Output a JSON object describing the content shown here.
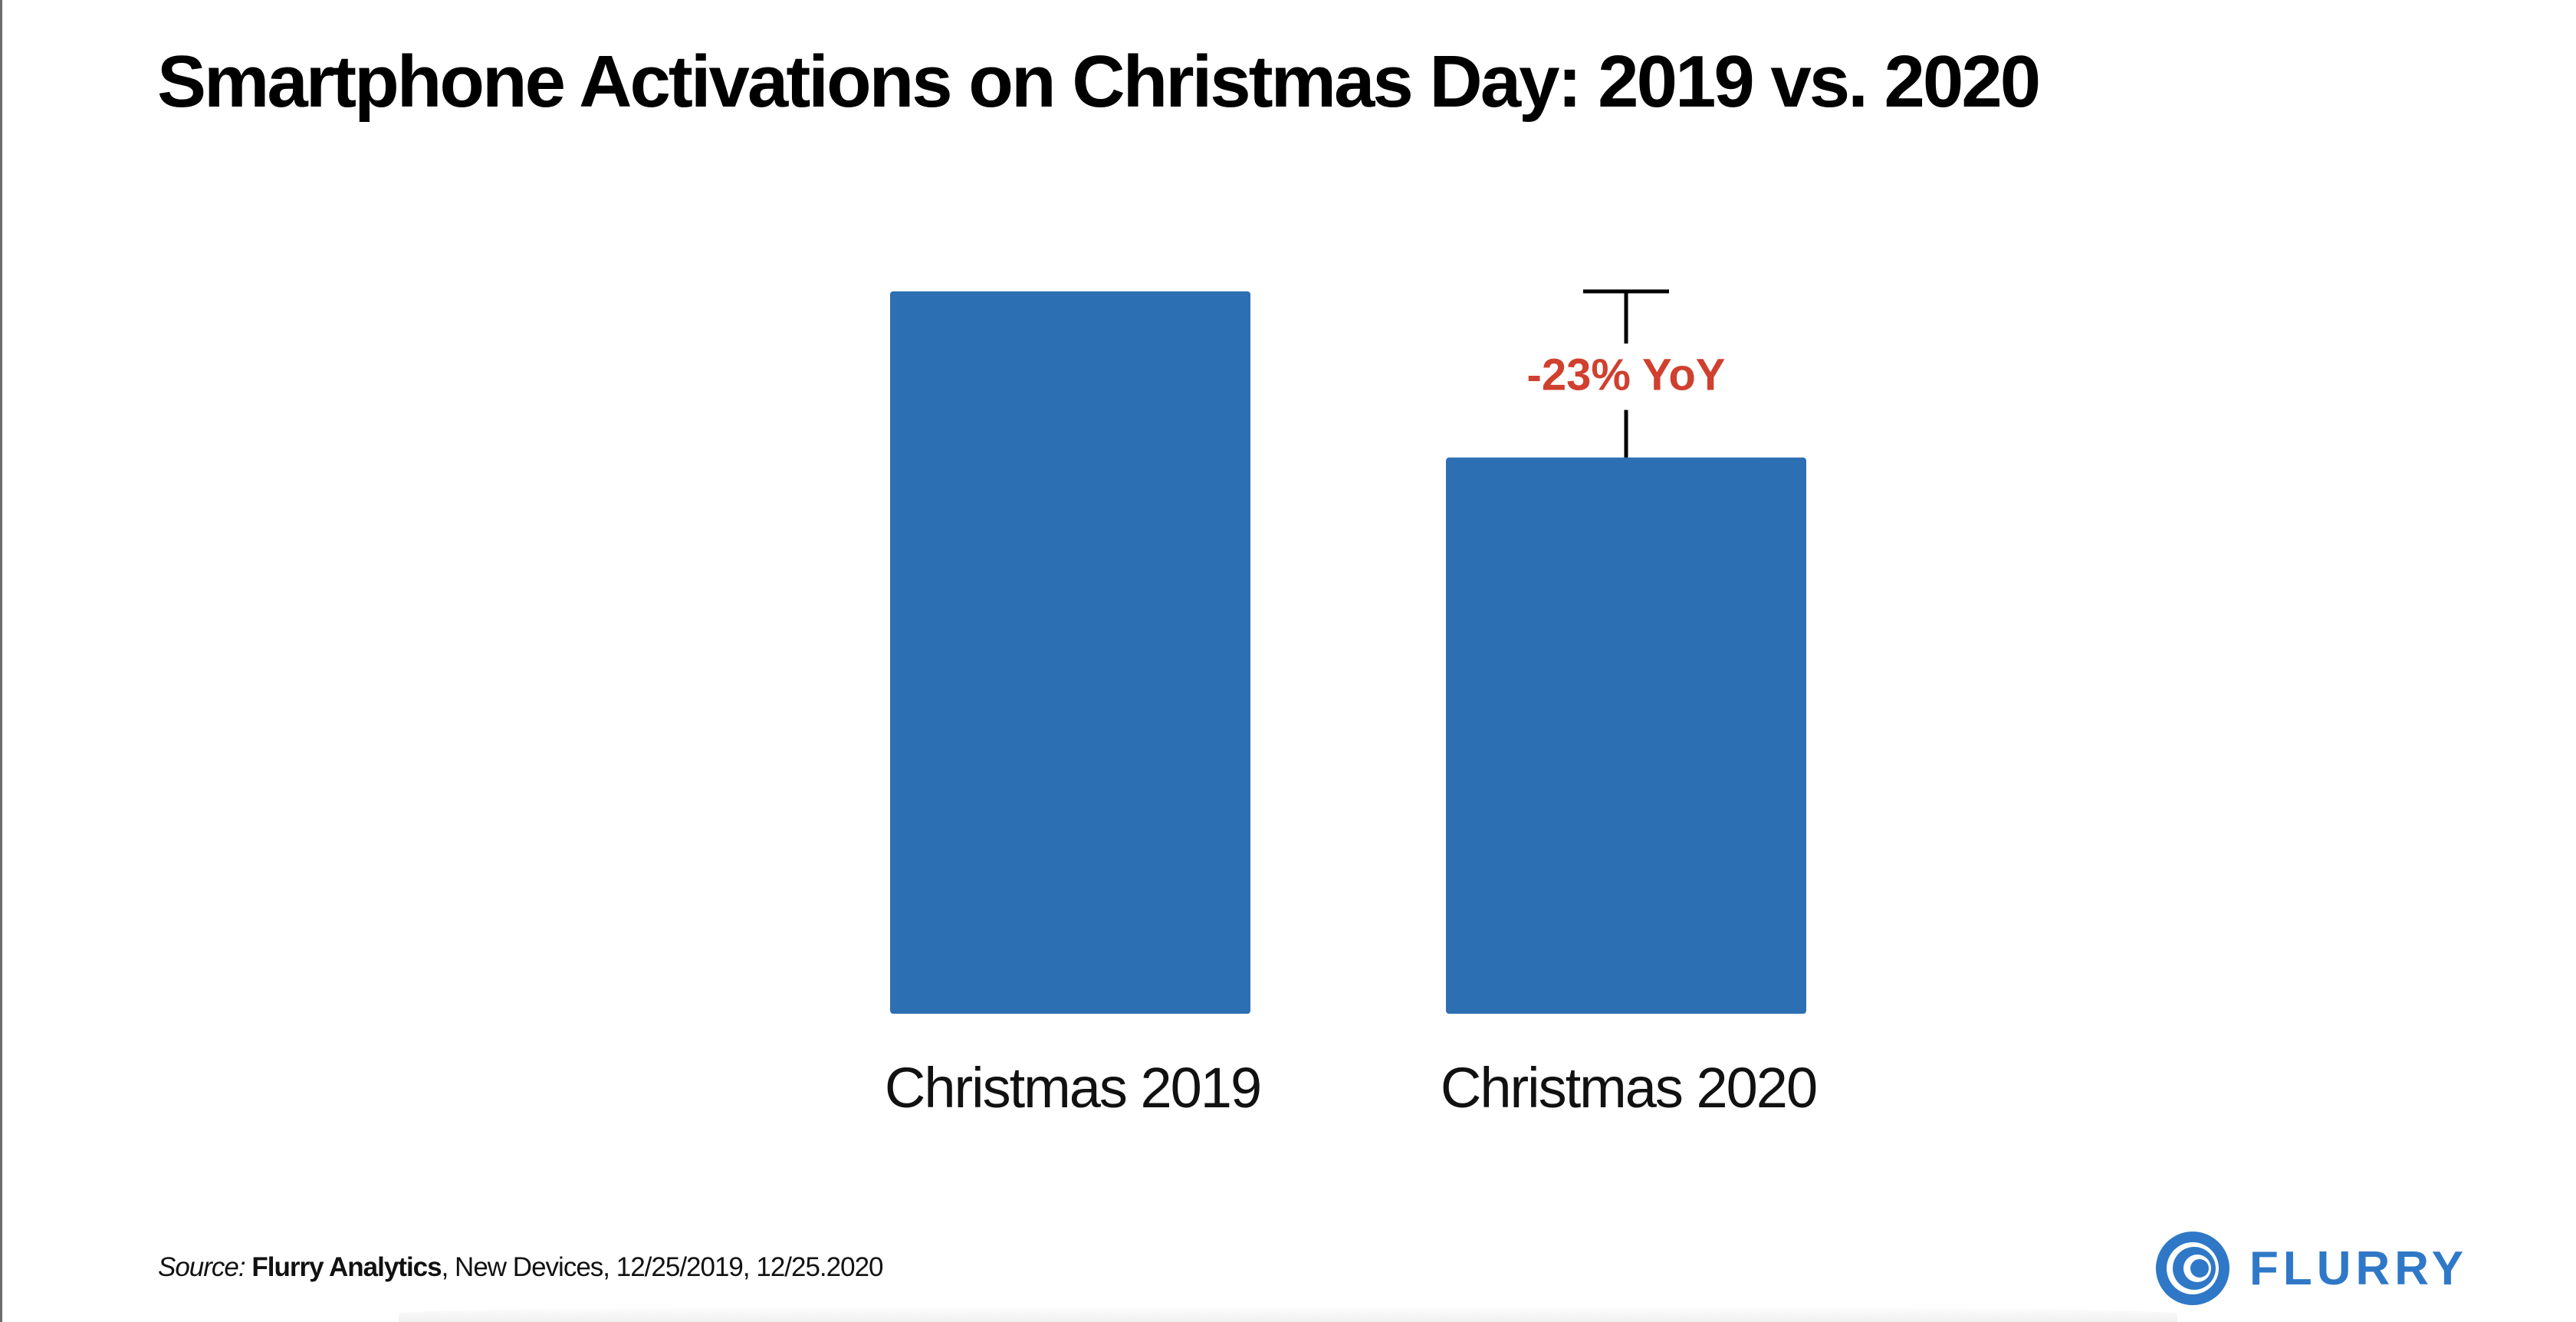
{
  "title": "Smartphone Activations on Christmas Day: 2019 vs. 2020",
  "chart_data": {
    "type": "bar",
    "title": "Smartphone Activations on Christmas Day: 2019 vs. 2020",
    "categories": [
      "Christmas 2019",
      "Christmas 2020"
    ],
    "values": [
      100,
      77
    ],
    "value_note": "relative activation index (axis unlabeled); 2019 = 100",
    "xlabel": "",
    "ylabel": "",
    "ylim": [
      0,
      100
    ],
    "grid": false,
    "legend": "none",
    "bar_color": "#2c6fb2",
    "annotation": {
      "text": "-23% YoY",
      "color": "#d0402f",
      "from_category": "Christmas 2019",
      "to_category": "Christmas 2020"
    }
  },
  "footer": {
    "source_label": "Source:",
    "source_name": "Flurry Analytics",
    "source_rest": ", New Devices, 12/25/2019, 12/25.2020"
  },
  "logo": {
    "text": "FLURRY",
    "icon": "flurry-swirl-icon",
    "color": "#2f78c7"
  }
}
